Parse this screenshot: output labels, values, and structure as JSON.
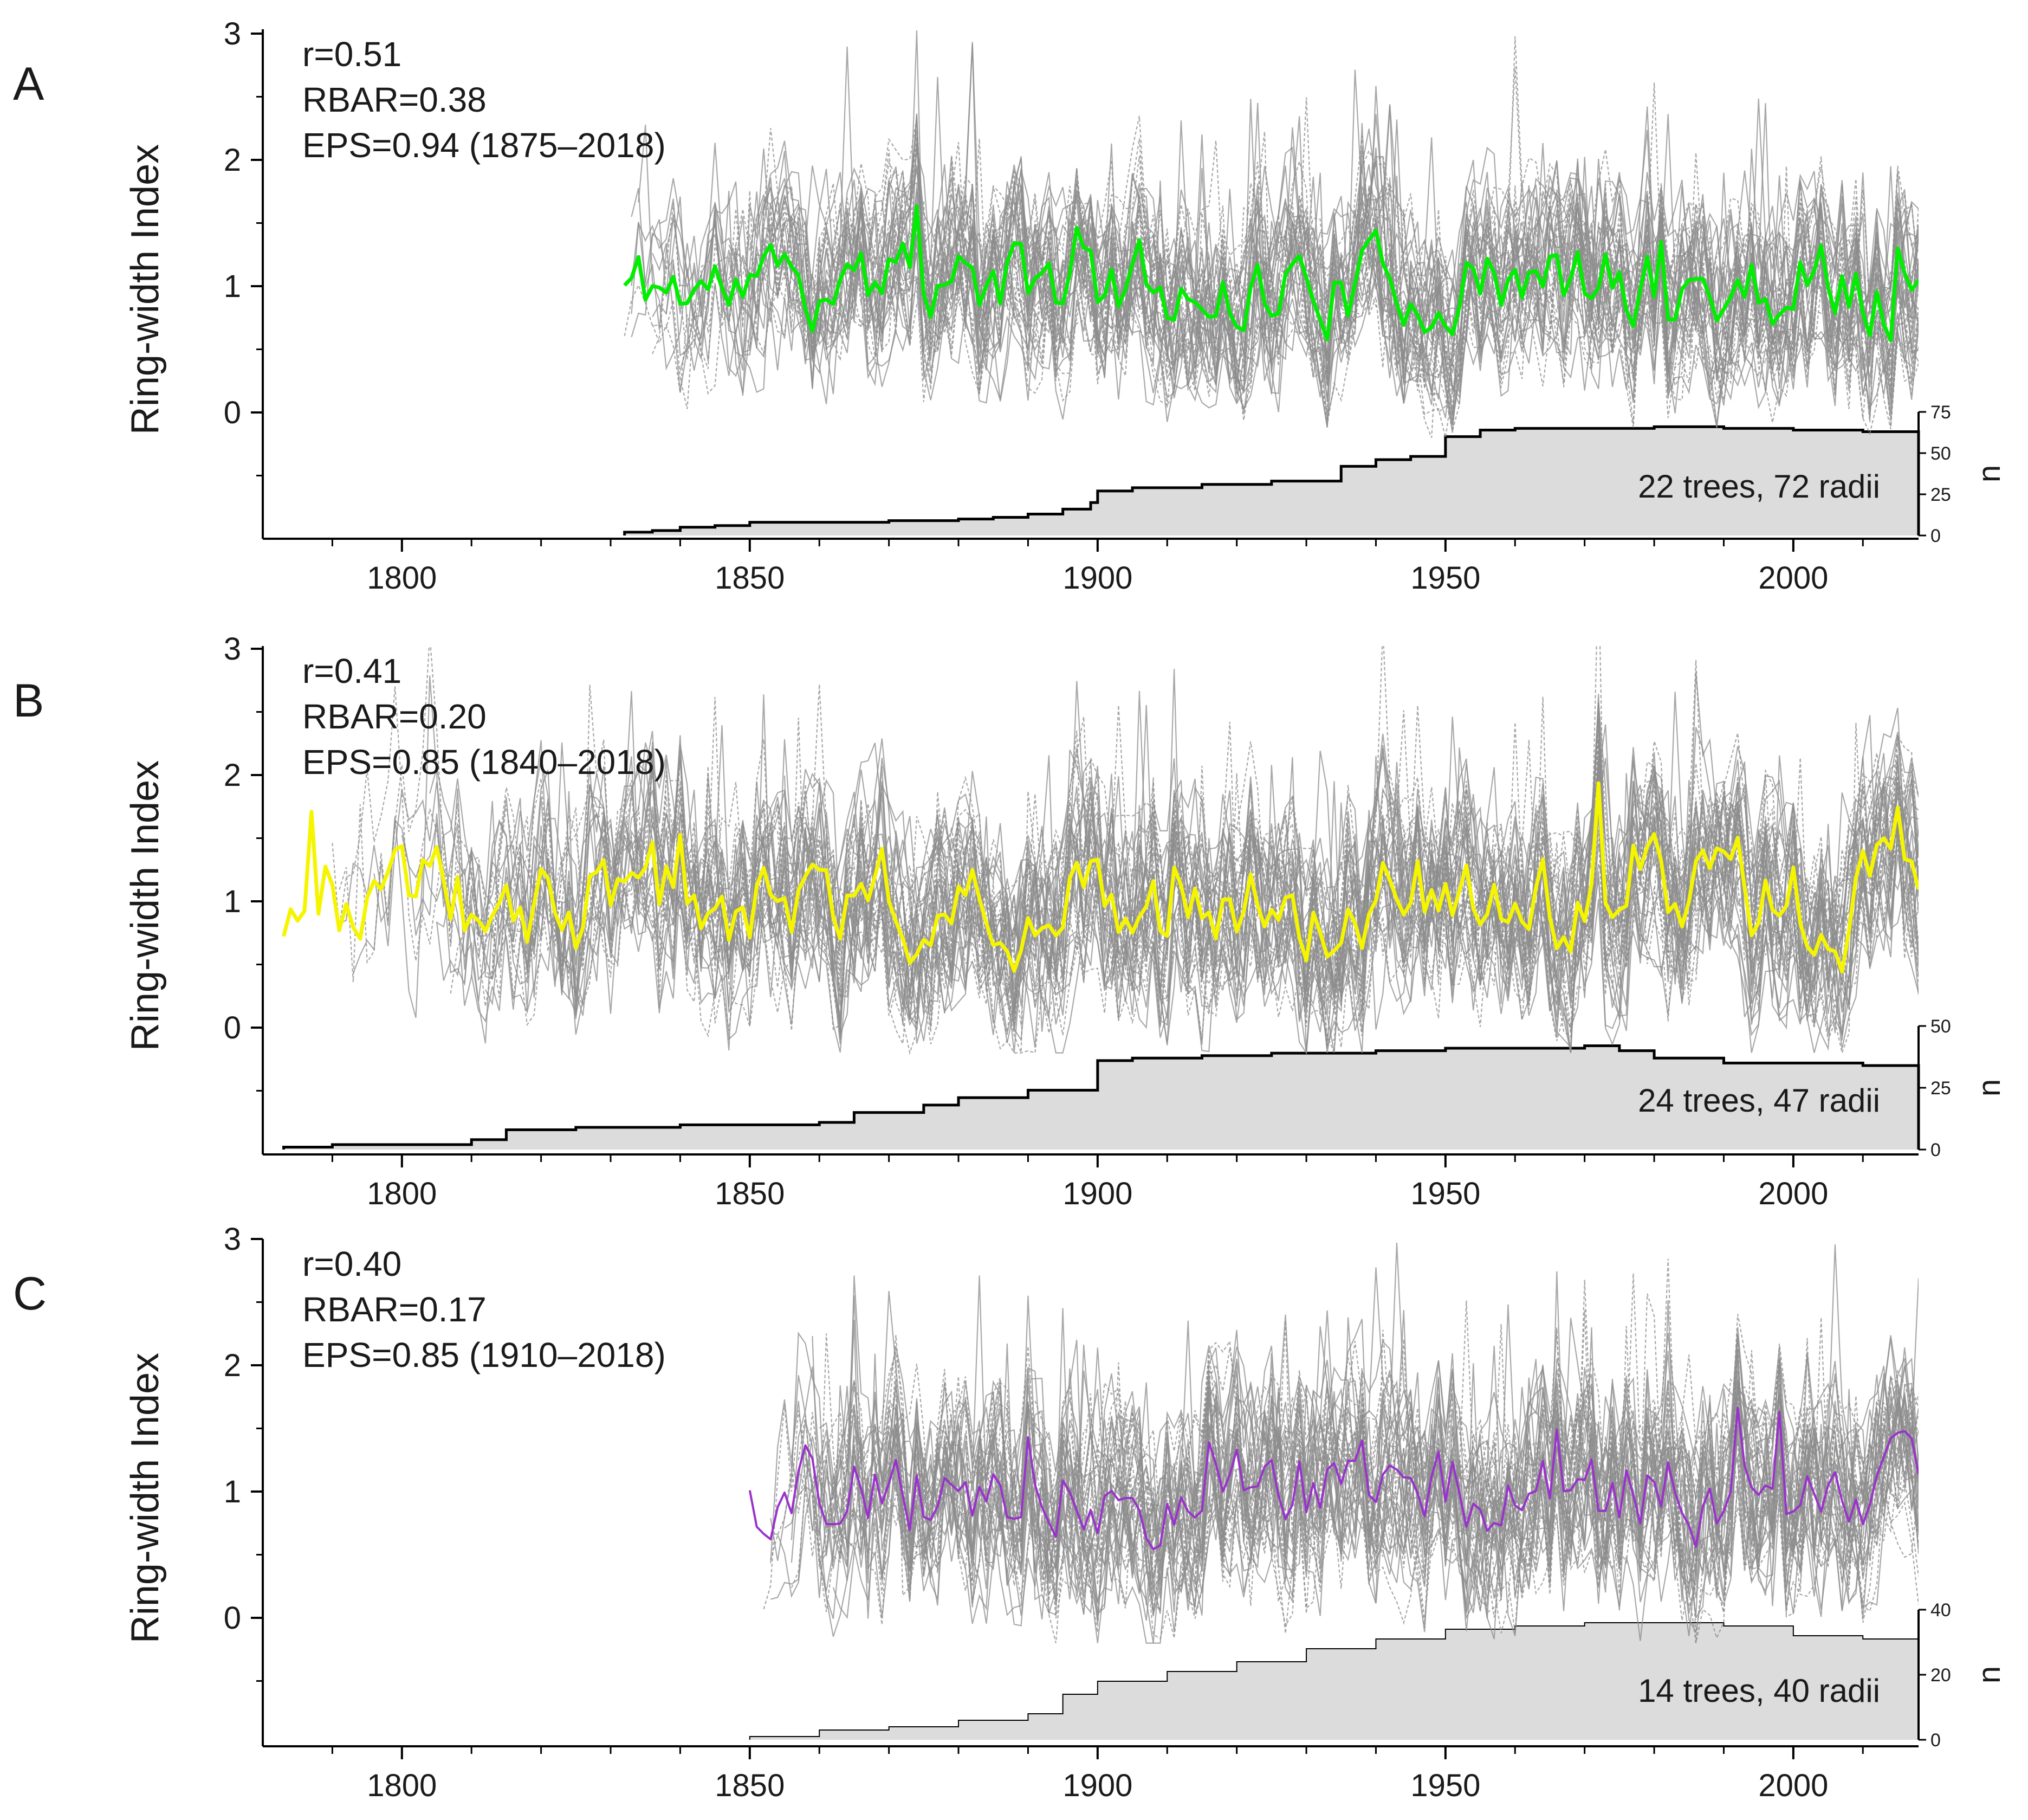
{
  "figure": {
    "x_ticks": [
      "1800",
      "1850",
      "1900",
      "1950",
      "2000"
    ],
    "y_ticks": [
      "0",
      "1",
      "2",
      "3"
    ],
    "ylabel": "Ring-width Index",
    "nlabel": "n",
    "colors": {
      "background_series": "#8c8c8c",
      "sample_fill": "#dcdcdc",
      "sample_line": "#000000",
      "axis": "#000000"
    }
  },
  "chart_data": [
    {
      "type": "line",
      "panel": "A",
      "ylabel": "Ring-width Index",
      "xlim": [
        1780,
        2018
      ],
      "ylim": [
        -1,
        3
      ],
      "x_ticks": [
        1800,
        1850,
        1900,
        1950,
        2000
      ],
      "y_ticks": [
        0,
        1,
        2,
        3
      ],
      "stats": {
        "r": "r=0.51",
        "rbar": "RBAR=0.38",
        "eps": "EPS=0.94 (1875–2018)"
      },
      "series": [
        {
          "name": "chronology",
          "color": "#00ee00",
          "start": 1832,
          "end": 2018,
          "mean": 1.0,
          "amp": 0.28,
          "seed": 11
        },
        {
          "name": "individual radii",
          "color": "#8c8c8c",
          "count": 72,
          "start": 1832,
          "end": 2018,
          "mean": 1.0,
          "amp": 0.55,
          "seed": 101
        }
      ],
      "sample_depth": {
        "label": "22 trees, 72 radii",
        "nlim": [
          0,
          75
        ],
        "n_ticks": [
          0,
          25,
          50,
          75
        ],
        "years": [
          1832,
          1836,
          1840,
          1845,
          1850,
          1870,
          1880,
          1885,
          1890,
          1895,
          1899,
          1900,
          1905,
          1915,
          1925,
          1935,
          1940,
          1945,
          1950,
          1955,
          1960,
          1970,
          1980,
          1990,
          2000,
          2010,
          2018
        ],
        "n": [
          2,
          3,
          5,
          6,
          8,
          9,
          10,
          11,
          13,
          16,
          20,
          27,
          29,
          31,
          33,
          42,
          46,
          48,
          60,
          64,
          65,
          65,
          66,
          65,
          64,
          63,
          63
        ]
      }
    },
    {
      "type": "line",
      "panel": "B",
      "ylabel": "Ring-width Index",
      "xlim": [
        1780,
        2018
      ],
      "ylim": [
        -1,
        3
      ],
      "x_ticks": [
        1800,
        1850,
        1900,
        1950,
        2000
      ],
      "y_ticks": [
        0,
        1,
        2,
        3
      ],
      "stats": {
        "r": "r=0.41",
        "rbar": "RBAR=0.20",
        "eps": "EPS=0.85 (1840–2018)"
      },
      "series": [
        {
          "name": "chronology",
          "color": "#f5f500",
          "start": 1783,
          "end": 2018,
          "mean": 1.0,
          "amp": 0.34,
          "seed": 23
        },
        {
          "name": "individual radii",
          "color": "#8c8c8c",
          "count": 47,
          "start": 1790,
          "end": 2018,
          "mean": 1.0,
          "amp": 0.6,
          "seed": 203
        }
      ],
      "sample_depth": {
        "label": "24 trees, 47 radii",
        "nlim": [
          0,
          50
        ],
        "n_ticks": [
          0,
          25,
          50
        ],
        "years": [
          1783,
          1790,
          1800,
          1810,
          1815,
          1825,
          1840,
          1850,
          1860,
          1865,
          1875,
          1880,
          1890,
          1900,
          1905,
          1915,
          1925,
          1940,
          1950,
          1960,
          1970,
          1975,
          1980,
          1990,
          2000,
          2010,
          2018
        ],
        "n": [
          1,
          2,
          2,
          4,
          8,
          9,
          10,
          10,
          11,
          15,
          18,
          21,
          24,
          36,
          37,
          38,
          39,
          40,
          41,
          41,
          42,
          40,
          37,
          35,
          35,
          34,
          28
        ]
      }
    },
    {
      "type": "line",
      "panel": "C",
      "ylabel": "Ring-width Index",
      "xlim": [
        1780,
        2018
      ],
      "ylim": [
        -1,
        3
      ],
      "x_ticks": [
        1800,
        1850,
        1900,
        1950,
        2000
      ],
      "y_ticks": [
        0,
        1,
        2,
        3
      ],
      "stats": {
        "r": "r=0.40",
        "rbar": "RBAR=0.17",
        "eps": "EPS=0.85 (1910–2018)"
      },
      "series": [
        {
          "name": "chronology",
          "color": "#9932cc",
          "start": 1850,
          "end": 2018,
          "mean": 1.0,
          "amp": 0.3,
          "seed": 37
        },
        {
          "name": "individual radii",
          "color": "#8c8c8c",
          "count": 40,
          "start": 1852,
          "end": 2018,
          "mean": 1.0,
          "amp": 0.6,
          "seed": 307
        }
      ],
      "sample_depth": {
        "label": "14 trees, 40 radii",
        "nlim": [
          0,
          40
        ],
        "n_ticks": [
          0,
          20,
          40
        ],
        "years": [
          1850,
          1860,
          1870,
          1880,
          1890,
          1895,
          1900,
          1910,
          1920,
          1930,
          1940,
          1950,
          1960,
          1970,
          1975,
          1990,
          2000,
          2010,
          2018
        ],
        "n": [
          1,
          3,
          4,
          6,
          8,
          14,
          18,
          21,
          24,
          28,
          31,
          34,
          35,
          36,
          36,
          35,
          32,
          31,
          30
        ]
      }
    }
  ]
}
